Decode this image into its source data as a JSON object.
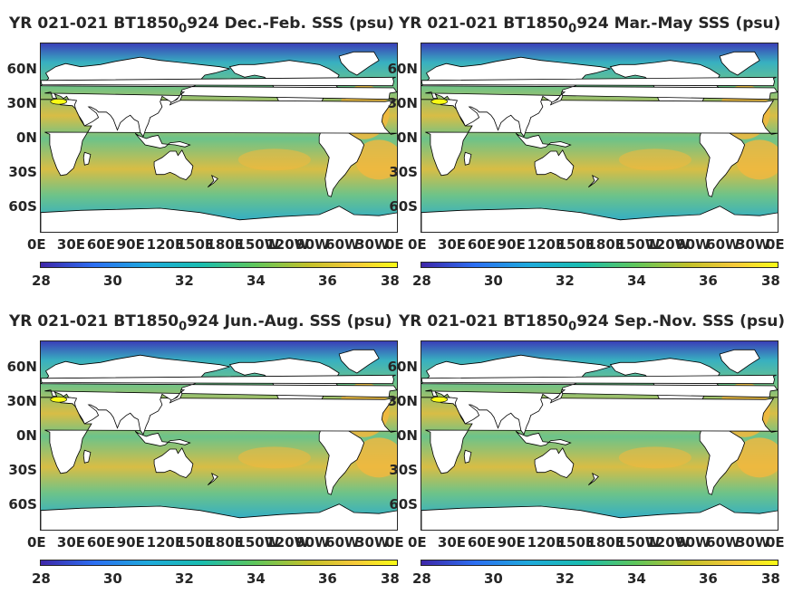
{
  "chart_data": [
    {
      "type": "heatmap",
      "title_prefix": "YR 021-021 BT1850",
      "title_subscript": "0",
      "title_suffix": "924 Dec.-Feb. SSS (psu)",
      "xticks": [
        "0E",
        "30E",
        "60E",
        "90E",
        "120E",
        "150E",
        "180E",
        "150W",
        "120W",
        "90W",
        "60W",
        "30W",
        "0E"
      ],
      "yticks": [
        "60N",
        "30N",
        "0N",
        "30S",
        "60S"
      ],
      "colorbar_ticks": [
        "28",
        "30",
        "32",
        "34",
        "36",
        "38"
      ],
      "clim": [
        28,
        38
      ]
    },
    {
      "type": "heatmap",
      "title_prefix": "YR 021-021 BT1850",
      "title_subscript": "0",
      "title_suffix": "924 Mar.-May SSS (psu)",
      "xticks": [
        "0E",
        "30E",
        "60E",
        "90E",
        "120E",
        "150E",
        "180E",
        "150W",
        "120W",
        "90W",
        "60W",
        "30W",
        "0E"
      ],
      "yticks": [
        "60N",
        "30N",
        "0N",
        "30S",
        "60S"
      ],
      "colorbar_ticks": [
        "28",
        "30",
        "32",
        "34",
        "36",
        "38"
      ],
      "clim": [
        28,
        38
      ]
    },
    {
      "type": "heatmap",
      "title_prefix": "YR 021-021 BT1850",
      "title_subscript": "0",
      "title_suffix": "924 Jun.-Aug. SSS (psu)",
      "xticks": [
        "0E",
        "30E",
        "60E",
        "90E",
        "120E",
        "150E",
        "180E",
        "150W",
        "120W",
        "90W",
        "60W",
        "30W",
        "0E"
      ],
      "yticks": [
        "60N",
        "30N",
        "0N",
        "30S",
        "60S"
      ],
      "colorbar_ticks": [
        "28",
        "30",
        "32",
        "34",
        "36",
        "38"
      ],
      "clim": [
        28,
        38
      ]
    },
    {
      "type": "heatmap",
      "title_prefix": "YR 021-021 BT1850",
      "title_subscript": "0",
      "title_suffix": "924 Sep.-Nov. SSS (psu)",
      "xticks": [
        "0E",
        "30E",
        "60E",
        "90E",
        "120E",
        "150E",
        "180E",
        "150W",
        "120W",
        "90W",
        "60W",
        "30W",
        "0E"
      ],
      "yticks": [
        "60N",
        "30N",
        "0N",
        "30S",
        "60S"
      ],
      "colorbar_ticks": [
        "28",
        "30",
        "32",
        "34",
        "36",
        "38"
      ],
      "clim": [
        28,
        38
      ]
    }
  ],
  "colors": {
    "ocean_base": "#6cc38a",
    "salty_atlantic": "#f2b83e",
    "subtropical": "#d8bd45",
    "fresh_arctic": "#3a3fb8",
    "mid_fresh": "#38b0c0",
    "land": "#ffffff",
    "mediterranean": "#f9fb15"
  }
}
